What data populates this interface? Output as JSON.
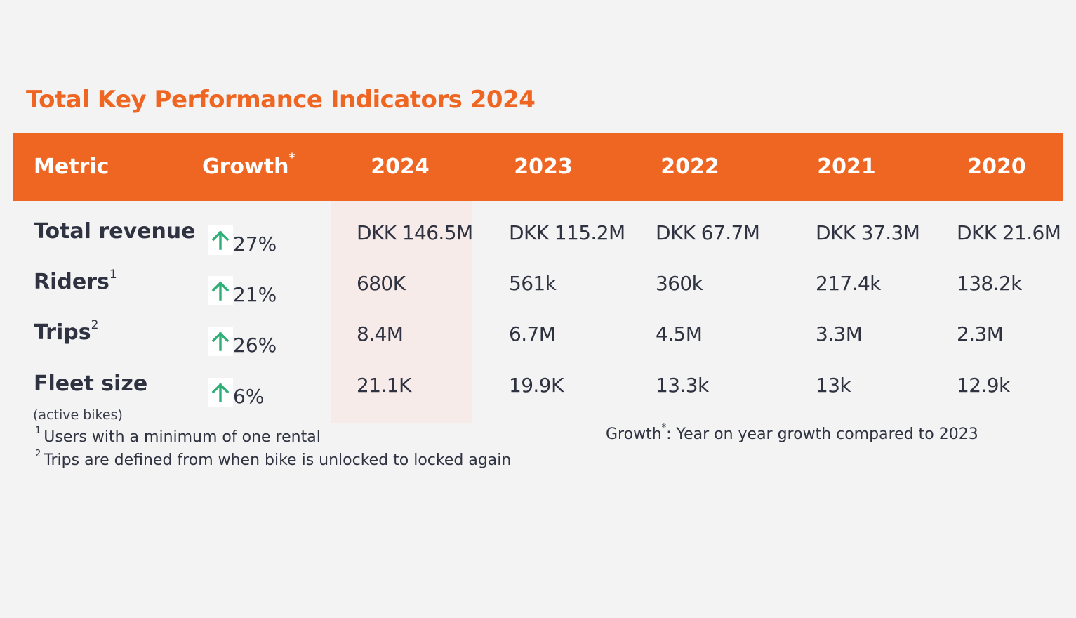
{
  "title": "Total Key Performance Indicators 2024",
  "colors": {
    "accent": "#ef6522",
    "highlight": "#f6ebe9",
    "arrow": "#2fae76",
    "text": "#2f3240"
  },
  "header": {
    "metric": "Metric",
    "growth": "Growth",
    "growth_marker": "*",
    "years": [
      "2024",
      "2023",
      "2022",
      "2021",
      "2020"
    ]
  },
  "rows": [
    {
      "metric": "Total revenue",
      "footnote_ref": "",
      "sub": "",
      "growth": "27%",
      "growth_icon": "arrow-up-icon",
      "values": [
        "DKK 146.5M",
        "DKK 115.2M",
        "DKK 67.7M",
        "DKK 37.3M",
        "DKK 21.6M"
      ]
    },
    {
      "metric": "Riders",
      "footnote_ref": "1",
      "sub": "",
      "growth": "21%",
      "growth_icon": "arrow-up-icon",
      "values": [
        "680K",
        "561k",
        "360k",
        "217.4k",
        "138.2k"
      ]
    },
    {
      "metric": "Trips",
      "footnote_ref": "2",
      "sub": "",
      "growth": "26%",
      "growth_icon": "arrow-up-icon",
      "values": [
        "8.4M",
        "6.7M",
        "4.5M",
        "3.3M",
        "2.3M"
      ]
    },
    {
      "metric": "Fleet size",
      "footnote_ref": "",
      "sub": "(active bikes)",
      "growth": "6%",
      "growth_icon": "arrow-up-icon",
      "values": [
        "21.1K",
        "19.9K",
        "13.3k",
        "13k",
        "12.9k"
      ]
    }
  ],
  "footnotes": [
    {
      "ref": "1",
      "text": "Users with a minimum of one rental"
    },
    {
      "ref": "2",
      "text": "Trips are defined from when bike is unlocked to locked again"
    }
  ],
  "growth_note": {
    "label": "Growth",
    "marker": "*",
    "text": ": Year on year growth compared to 2023"
  }
}
